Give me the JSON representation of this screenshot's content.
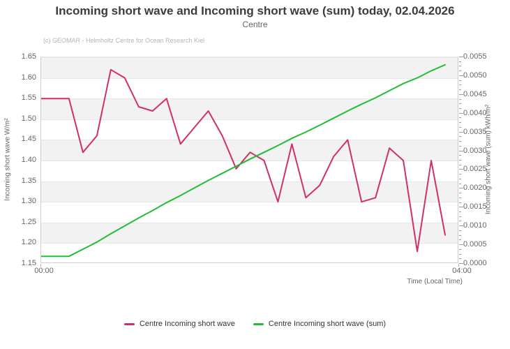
{
  "header": {
    "title": "Incoming short wave and Incoming short wave (sum) today, 02.04.2026",
    "subtitle": "Centre",
    "watermark": "(c) GEOMAR - Helmholtz Centre for Ocean Research Kiel"
  },
  "chart_data": {
    "type": "line",
    "title": "Incoming short wave and Incoming short wave (sum) today, 02.04.2026",
    "subtitle": "Centre",
    "xlabel": "Time (Local Time)",
    "x_axis_ticks": [
      "00:00",
      "04:00"
    ],
    "x_range_minutes": [
      0,
      240
    ],
    "interval_minutes": 8,
    "grid": "alternating-bands",
    "legend_position": "bottom",
    "axes": {
      "left": {
        "label": "Incoming short wave W/m²",
        "min": 1.15,
        "max": 1.65,
        "tick_step": 0.05,
        "ticks": [
          "1.15",
          "1.20",
          "1.25",
          "1.30",
          "1.35",
          "1.40",
          "1.45",
          "1.50",
          "1.55",
          "1.60",
          "1.65"
        ]
      },
      "right": {
        "label": "Incoming short wave (sum) kWh/m²",
        "min": 0.0,
        "max": 0.0055,
        "tick_step": 0.0005,
        "ticks": [
          "0.0000",
          "0.0005",
          "0.0010",
          "0.0015",
          "0.0020",
          "0.0025",
          "0.0030",
          "0.0035",
          "0.0040",
          "0.0045",
          "0.0050",
          "0.0055"
        ]
      }
    },
    "x_times": [
      "00:00",
      "00:08",
      "00:16",
      "00:24",
      "00:32",
      "00:40",
      "00:48",
      "00:56",
      "01:04",
      "01:12",
      "01:20",
      "01:28",
      "01:36",
      "01:44",
      "01:52",
      "02:00",
      "02:08",
      "02:16",
      "02:24",
      "02:32",
      "02:40",
      "02:48",
      "02:56",
      "03:04",
      "03:12",
      "03:20",
      "03:28",
      "03:36",
      "03:44",
      "03:52"
    ],
    "series": [
      {
        "name": "Centre Incoming short wave",
        "axis": "left",
        "color": "#d13060",
        "values": [
          1.55,
          1.55,
          1.55,
          1.42,
          1.46,
          1.62,
          1.6,
          1.53,
          1.52,
          1.55,
          1.44,
          1.48,
          1.52,
          1.46,
          1.38,
          1.42,
          1.4,
          1.3,
          1.44,
          1.31,
          1.34,
          1.41,
          1.45,
          1.3,
          1.31,
          1.43,
          1.4,
          1.18,
          1.4,
          1.22
        ]
      },
      {
        "name": "Centre Incoming short wave (sum)",
        "axis": "right",
        "color": "#23bd33",
        "values": [
          0.0002,
          0.0002,
          0.0002,
          0.00039,
          0.00058,
          0.0008,
          0.00101,
          0.00122,
          0.00142,
          0.00163,
          0.00182,
          0.00202,
          0.00222,
          0.00241,
          0.0026,
          0.00279,
          0.00297,
          0.00315,
          0.00334,
          0.00351,
          0.00369,
          0.00388,
          0.00407,
          0.00425,
          0.00442,
          0.00461,
          0.0048,
          0.00495,
          0.00514,
          0.0053
        ]
      }
    ]
  },
  "colors": {
    "band_gray": "#f2f2f2",
    "gridline": "#e7e7e7",
    "axis_line": "#cdcdcd",
    "title_text": "#3c3c3c",
    "muted_text": "#666666",
    "watermark_text": "#b5b5b5"
  }
}
